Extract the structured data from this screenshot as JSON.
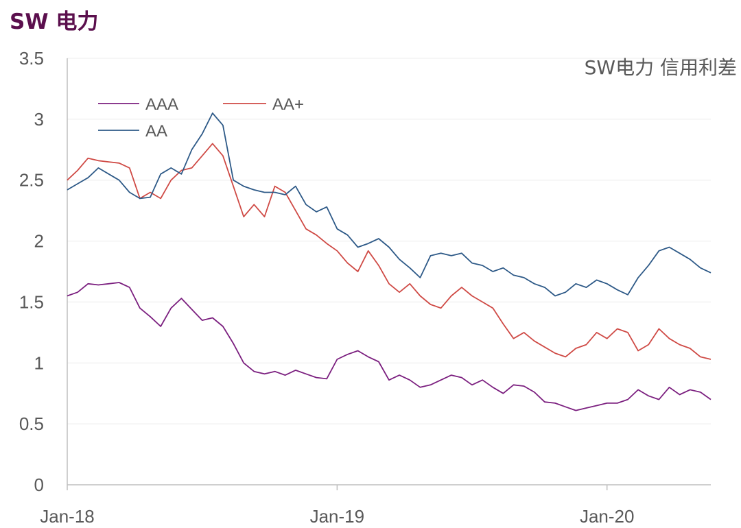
{
  "header": {
    "title": "SW 电力"
  },
  "colors": {
    "AAA": "#7b1f7f",
    "AA+": "#cf4a45",
    "AA": "#2d5987",
    "axis": "#bfbfbf",
    "text": "#595959",
    "title": "#5b0f4d"
  },
  "chart_data": {
    "type": "line",
    "title": "SW电力 信用利差",
    "xlabel": "",
    "ylabel": "",
    "ylim": [
      0,
      3.5
    ],
    "yticks": [
      "0",
      "0.5",
      "1",
      "1.5",
      "2",
      "2.5",
      "3",
      "3.5"
    ],
    "xticks": [
      {
        "label": "Jan-18",
        "x": 0
      },
      {
        "label": "Jan-19",
        "x": 52
      },
      {
        "label": "Jan-20",
        "x": 104
      }
    ],
    "legend": [
      "AAA",
      "AA+",
      "AA"
    ],
    "series": [
      {
        "name": "AAA",
        "x": [
          0,
          2,
          4,
          6,
          8,
          10,
          12,
          14,
          16,
          18,
          20,
          22,
          24,
          26,
          28,
          30,
          32,
          34,
          36,
          38,
          40,
          42,
          44,
          46,
          48,
          50,
          52,
          54,
          56,
          58,
          60,
          62,
          64,
          66,
          68,
          70,
          72,
          74,
          76,
          78,
          80,
          82,
          84,
          86,
          88,
          90,
          92,
          94,
          96,
          98,
          100,
          102,
          104,
          106,
          108,
          110,
          112,
          114,
          116,
          118,
          120,
          122,
          124
        ],
        "values": [
          1.55,
          1.58,
          1.65,
          1.64,
          1.65,
          1.66,
          1.62,
          1.45,
          1.38,
          1.3,
          1.45,
          1.53,
          1.44,
          1.35,
          1.37,
          1.3,
          1.16,
          1.0,
          0.93,
          0.91,
          0.93,
          0.9,
          0.94,
          0.91,
          0.88,
          0.87,
          1.03,
          1.07,
          1.1,
          1.05,
          1.01,
          0.86,
          0.9,
          0.86,
          0.8,
          0.82,
          0.86,
          0.9,
          0.88,
          0.82,
          0.86,
          0.8,
          0.75,
          0.82,
          0.81,
          0.76,
          0.68,
          0.67,
          0.64,
          0.61,
          0.63,
          0.65,
          0.67,
          0.67,
          0.7,
          0.78,
          0.73,
          0.7,
          0.8,
          0.74,
          0.78,
          0.76,
          0.7
        ]
      },
      {
        "name": "AA+",
        "x": [
          0,
          2,
          4,
          6,
          8,
          10,
          12,
          14,
          16,
          18,
          20,
          22,
          24,
          26,
          28,
          30,
          32,
          34,
          36,
          38,
          40,
          42,
          44,
          46,
          48,
          50,
          52,
          54,
          56,
          58,
          60,
          62,
          64,
          66,
          68,
          70,
          72,
          74,
          76,
          78,
          80,
          82,
          84,
          86,
          88,
          90,
          92,
          94,
          96,
          98,
          100,
          102,
          104,
          106,
          108,
          110,
          112,
          114,
          116,
          118,
          120,
          122,
          124
        ],
        "values": [
          2.5,
          2.58,
          2.68,
          2.66,
          2.65,
          2.64,
          2.6,
          2.35,
          2.4,
          2.35,
          2.5,
          2.58,
          2.6,
          2.7,
          2.8,
          2.7,
          2.45,
          2.2,
          2.3,
          2.2,
          2.45,
          2.4,
          2.25,
          2.1,
          2.05,
          1.98,
          1.92,
          1.82,
          1.75,
          1.92,
          1.8,
          1.65,
          1.58,
          1.65,
          1.55,
          1.48,
          1.45,
          1.55,
          1.62,
          1.55,
          1.5,
          1.45,
          1.32,
          1.2,
          1.25,
          1.18,
          1.13,
          1.08,
          1.05,
          1.12,
          1.15,
          1.25,
          1.2,
          1.28,
          1.25,
          1.1,
          1.15,
          1.28,
          1.2,
          1.15,
          1.12,
          1.05,
          1.03
        ]
      },
      {
        "name": "AA",
        "x": [
          0,
          2,
          4,
          6,
          8,
          10,
          12,
          14,
          16,
          18,
          20,
          22,
          24,
          26,
          28,
          30,
          32,
          34,
          36,
          38,
          40,
          42,
          44,
          46,
          48,
          50,
          52,
          54,
          56,
          58,
          60,
          62,
          64,
          66,
          68,
          70,
          72,
          74,
          76,
          78,
          80,
          82,
          84,
          86,
          88,
          90,
          92,
          94,
          96,
          98,
          100,
          102,
          104,
          106,
          108,
          110,
          112,
          114,
          116,
          118,
          120,
          122,
          124
        ],
        "values": [
          2.42,
          2.47,
          2.52,
          2.6,
          2.55,
          2.5,
          2.4,
          2.35,
          2.36,
          2.55,
          2.6,
          2.55,
          2.75,
          2.88,
          3.05,
          2.95,
          2.5,
          2.45,
          2.42,
          2.4,
          2.4,
          2.38,
          2.45,
          2.3,
          2.24,
          2.28,
          2.1,
          2.05,
          1.95,
          1.98,
          2.02,
          1.95,
          1.85,
          1.78,
          1.7,
          1.88,
          1.9,
          1.88,
          1.9,
          1.82,
          1.8,
          1.75,
          1.78,
          1.72,
          1.7,
          1.65,
          1.62,
          1.55,
          1.58,
          1.65,
          1.62,
          1.68,
          1.65,
          1.6,
          1.56,
          1.7,
          1.8,
          1.92,
          1.95,
          1.9,
          1.85,
          1.78,
          1.74
        ]
      }
    ]
  }
}
